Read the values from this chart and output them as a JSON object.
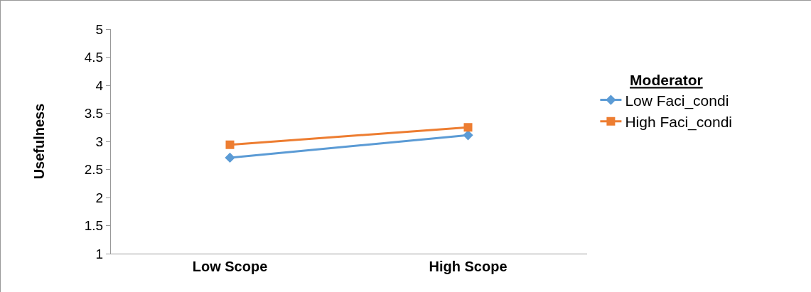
{
  "chart_data": {
    "type": "line",
    "ylabel": "Usefulness",
    "legend_title": "Moderator",
    "categories": [
      "Low Scope",
      "High Scope"
    ],
    "series": [
      {
        "name": "Low Faci_condi",
        "color": "#5b9bd5",
        "marker": "diamond",
        "values": [
          2.71,
          3.11
        ]
      },
      {
        "name": "High Faci_condi",
        "color": "#ed7d31",
        "marker": "square",
        "values": [
          2.94,
          3.25
        ]
      }
    ],
    "ylim": [
      1,
      5
    ],
    "yticks": [
      1,
      1.5,
      2,
      2.5,
      3,
      3.5,
      4,
      4.5,
      5
    ],
    "grid": false,
    "legend": "right"
  }
}
